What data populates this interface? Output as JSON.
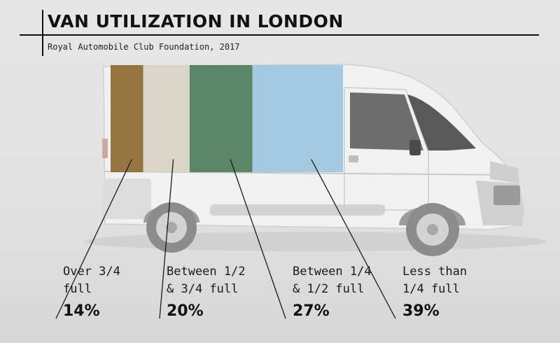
{
  "title": "VAN UTILIZATION IN LONDON",
  "source": "Royal Automobile Club Foundation, 2017",
  "chart_data": {
    "type": "bar",
    "title": "VAN UTILIZATION IN LONDON",
    "subtitle": "Royal Automobile Club Foundation, 2017",
    "categories": [
      "Over 3/4 full",
      "Between 1/2 & 3/4 full",
      "Between 1/4 & 1/2 full",
      "Less than 1/4 full"
    ],
    "display_labels": [
      "Over 3/4\nfull",
      "Between 1/2\n& 3/4 full",
      "Between 1/4\n& 1/2 full",
      "Less than\n1/4 full"
    ],
    "values": [
      14,
      20,
      27,
      39
    ],
    "value_labels": [
      "14%",
      "20%",
      "27%",
      "39%"
    ],
    "unit": "%",
    "colors": [
      "#8f6a33",
      "#d9d1c6",
      "#4f7c5b",
      "#9dc5df"
    ]
  }
}
